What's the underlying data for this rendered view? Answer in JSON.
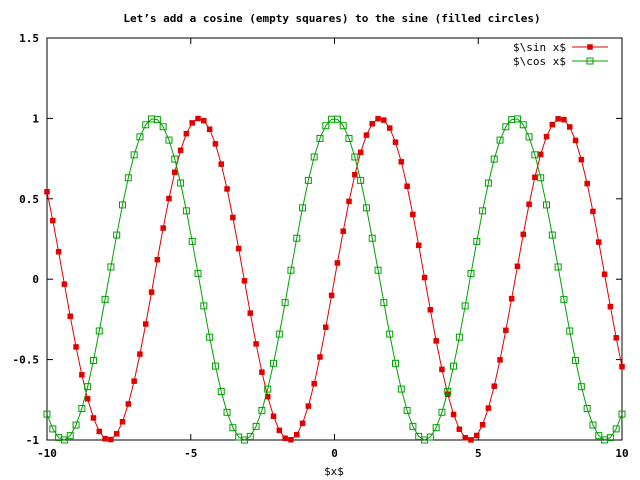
{
  "chart_data": {
    "type": "line",
    "title": "Let’s add a cosine (empty squares) to the sine (filled circles)",
    "xlabel": "$x$",
    "ylabel": "",
    "xlim": [
      -10,
      10
    ],
    "ylim": [
      -1,
      1.5
    ],
    "xticks": [
      -10,
      -5,
      0,
      5,
      10
    ],
    "xtick_labels": [
      "-10",
      "-5",
      "0",
      "5",
      "10"
    ],
    "yticks": [
      -1,
      -0.5,
      0,
      0.5,
      1,
      1.5
    ],
    "ytick_labels": [
      "-1",
      "-0.5",
      "0",
      "0.5",
      "1",
      "1.5"
    ],
    "grid": false,
    "legend_position": "top-right",
    "x_start": -10,
    "x_end": 10,
    "num_points": 100,
    "series": [
      {
        "name": "$\\sin x$",
        "function": "sin",
        "color": "#e00000",
        "marker": "filled-circle"
      },
      {
        "name": "$\\cos x$",
        "function": "cos",
        "color": "#00a000",
        "marker": "empty-square"
      }
    ]
  }
}
